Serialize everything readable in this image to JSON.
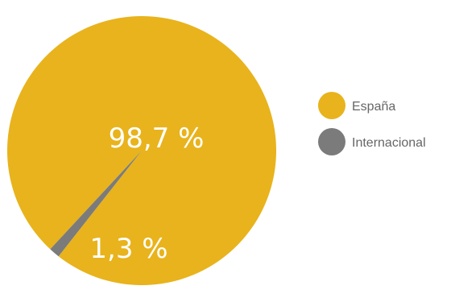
{
  "chart_data": {
    "type": "pie",
    "title": "",
    "slices": [
      {
        "label": "España",
        "value": 98.7,
        "display": "98,7 %",
        "color": "#E8B31C"
      },
      {
        "label": "Internacional",
        "value": 1.3,
        "display": "1,3 %",
        "color": "#7B7B7B"
      }
    ],
    "legend": {
      "position": "right",
      "items": [
        "España",
        "Internacional"
      ]
    }
  }
}
